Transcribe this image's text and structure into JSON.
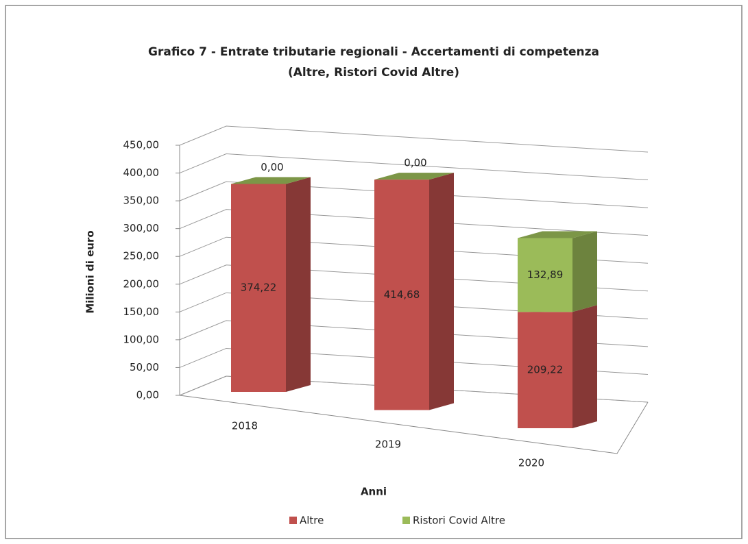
{
  "chart_data": {
    "type": "bar3d_stacked",
    "title": "Grafico 7 - Entrate tributarie regionali - Accertamenti di competenza",
    "subtitle": "(Altre, Ristori Covid Altre)",
    "y_label": "Milioni di euro",
    "x_label": "Anni",
    "categories": [
      "2018",
      "2019",
      "2020"
    ],
    "series": [
      {
        "name": "Altre",
        "color": "#c0504d",
        "values": [
          374.22,
          414.68,
          209.22
        ],
        "value_labels": [
          "374,22",
          "414,68",
          "209,22"
        ]
      },
      {
        "name": "Ristori Covid Altre",
        "color": "#9bbb59",
        "values": [
          0,
          0,
          132.89
        ],
        "value_labels": [
          "0,00",
          "0,00",
          "132,89"
        ]
      }
    ],
    "ylim": [
      0,
      450
    ],
    "yticks": [
      {
        "value": 0,
        "label": "0,00"
      },
      {
        "value": 50,
        "label": "50,00"
      },
      {
        "value": 100,
        "label": "100,00"
      },
      {
        "value": 150,
        "label": "150,00"
      },
      {
        "value": 200,
        "label": "200,00"
      },
      {
        "value": 250,
        "label": "250,00"
      },
      {
        "value": 300,
        "label": "300,00"
      },
      {
        "value": 350,
        "label": "350,00"
      },
      {
        "value": 400,
        "label": "400,00"
      },
      {
        "value": 450,
        "label": "450,00"
      }
    ],
    "grid": true,
    "legend": "bottom"
  }
}
